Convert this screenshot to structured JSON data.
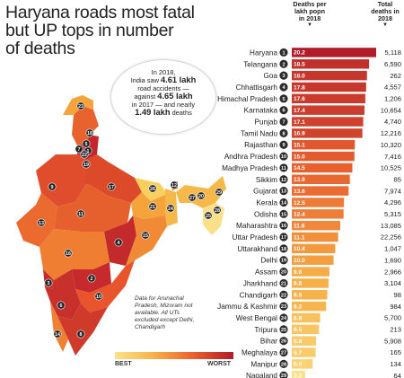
{
  "title_lines": [
    "Haryana roads most fatal",
    "but UP tops in number",
    "of deaths"
  ],
  "columns": {
    "rate": [
      "Deaths per",
      "lakh popn",
      "in 2018"
    ],
    "deaths": [
      "Total",
      "deaths in",
      "2018"
    ],
    "arrow": "▼"
  },
  "bubble": {
    "l1": "In 2018,",
    "l2a": "India saw ",
    "l2b": "4.61 lakh",
    "l3": "road accidents —",
    "l4a": "against ",
    "l4b": "4.65 lakh",
    "l5": "in 2017 — and nearly",
    "l6a": "1.49 lakh",
    "l6b": " deaths"
  },
  "note": "Data for Arunachal Pradesh, Mizoram not available. All UTs excluded except Delhi, Chandigarh",
  "legend": {
    "best": "BEST",
    "worst": "WORST",
    "best_color": "#fbe38a",
    "worst_color": "#b01c2a"
  },
  "chart_data": {
    "type": "bar",
    "title": "Haryana roads most fatal but UP tops in number of deaths",
    "ylabel": "Deaths per lakh popn in 2018",
    "categories": [
      "Haryana",
      "Telangana",
      "Goa",
      "Chhattisgarh",
      "Himachal Pradesh",
      "Karnataka",
      "Punjab",
      "Tamil Nadu",
      "Rajasthan",
      "Andhra Pradesh",
      "Madhya Pradesh",
      "Sikkim",
      "Gujarat",
      "Kerala",
      "Odisha",
      "Maharashtra",
      "Uttar Pradesh",
      "Uttarakhand",
      "Delhi",
      "Assam",
      "Jharkhand",
      "Chandigarh",
      "Jammu & Kashmir",
      "West Bengal",
      "Tripura",
      "Bihar",
      "Meghalaya",
      "Manipur",
      "Nagaland"
    ],
    "ranks": [
      1,
      2,
      3,
      4,
      5,
      6,
      7,
      8,
      9,
      10,
      11,
      12,
      13,
      14,
      15,
      16,
      17,
      18,
      19,
      20,
      21,
      22,
      23,
      24,
      25,
      26,
      27,
      28,
      29
    ],
    "series": [
      {
        "name": "Deaths per lakh popn in 2018",
        "values": [
          20.2,
          18.5,
          18.0,
          17.8,
          17.6,
          17.4,
          17.1,
          16.9,
          15.1,
          15.0,
          14.5,
          13.9,
          13.6,
          12.5,
          12.4,
          11.6,
          11.1,
          10.4,
          10.0,
          9.0,
          8.8,
          8.5,
          8.2,
          6.8,
          6.5,
          5.8,
          5.7,
          5.0,
          3.2
        ]
      },
      {
        "name": "Total deaths in 2018",
        "values": [
          "5,118",
          "6,590",
          "262",
          "4,557",
          "1,206",
          "10,654",
          "4,740",
          "12,216",
          "10,320",
          "7,416",
          "10,525",
          "85",
          "7,974",
          "4,296",
          "5,315",
          "13,085",
          "22,256",
          "1,047",
          "1,690",
          "2,966",
          "3,104",
          "98",
          "984",
          "5,700",
          "213",
          "5,908",
          "165",
          "134",
          "64"
        ]
      }
    ],
    "ylim": [
      0,
      20.2
    ]
  },
  "map_labels": [
    "1",
    "2",
    "3",
    "4",
    "5",
    "6",
    "7",
    "8",
    "9",
    "10",
    "11",
    "12",
    "13",
    "14",
    "15",
    "16",
    "17",
    "18",
    "19",
    "20",
    "21",
    "22",
    "23",
    "24",
    "25",
    "26",
    "27",
    "28",
    "29"
  ]
}
